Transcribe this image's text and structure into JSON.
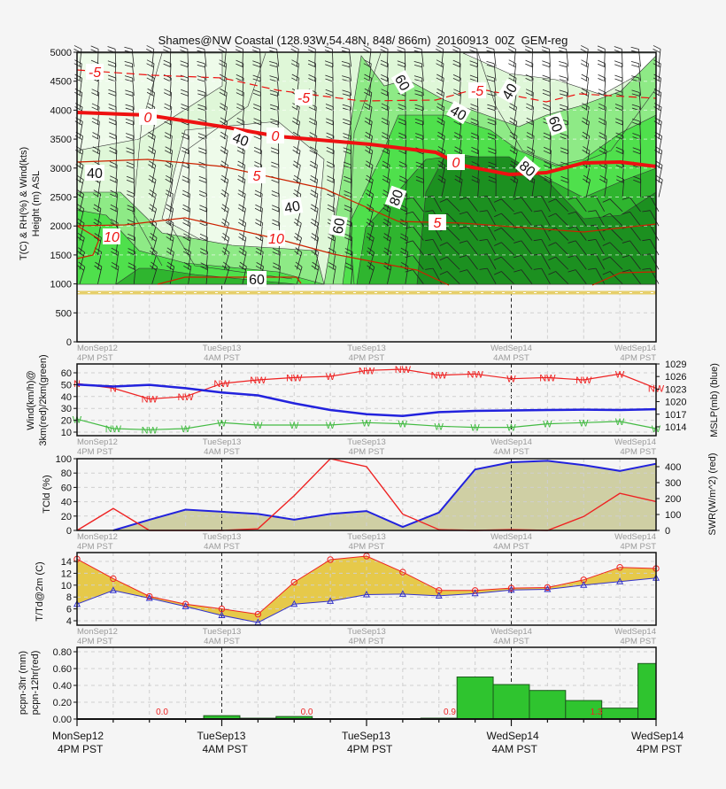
{
  "title": "Shames@NW Coastal (128.93W,54.48N, 848/ 866m)  20160913  00Z  GEM-reg",
  "time_axis": {
    "major_labels": [
      {
        "day": "MonSep12",
        "time": "4PM PST"
      },
      {
        "day": "TueSep13",
        "time": "4AM PST"
      },
      {
        "day": "TueSep13",
        "time": "4PM PST"
      },
      {
        "day": "WedSep14",
        "time": "4AM PST"
      },
      {
        "day": "WedSep14",
        "time": "4PM PST"
      }
    ],
    "step_hours": 3,
    "points": 17
  },
  "chart_data": [
    {
      "type": "heatmap",
      "panel": "cross-section",
      "ylabel": "T(C) & RH(%) & Wind(kts)",
      "ylabel2": "Height (m) ASL",
      "ylim": [
        0,
        5000
      ],
      "yticks": [
        "0",
        "500",
        "1000",
        "1500",
        "2000",
        "2500",
        "3000",
        "3500",
        "4000",
        "4500",
        "5000"
      ],
      "station_elevation_m": 848,
      "colors": {
        "rh_shading": [
          "#ffffff",
          "#eefbea",
          "#c8f3c0",
          "#8eea86",
          "#4fe04c",
          "#2fb52f",
          "#1c9020"
        ],
        "temperature": "#ee1111",
        "ground": "#e6cf6a"
      },
      "rh_labels": [
        "40",
        "40",
        "40",
        "60",
        "60",
        "80",
        "60",
        "40",
        "80",
        "60",
        "40"
      ],
      "temp_labels": [
        "-5",
        "-5",
        "-5",
        "0",
        "0",
        "0",
        "5",
        "5",
        "10",
        "10"
      ],
      "grid": true
    },
    {
      "type": "line",
      "panel": "wind",
      "ylabel": "Wind(km/h)@",
      "ylabel2": "3km(red)/2km(green)",
      "y2label": "MSLP(mb) (blue)",
      "yticks": [
        "10",
        "20",
        "30",
        "40",
        "50",
        "60"
      ],
      "y2ticks": [
        "1014",
        "1017",
        "1020",
        "1023",
        "1026",
        "1029"
      ],
      "series": [
        {
          "color": "#ee2222",
          "values": [
            51,
            47,
            38,
            40,
            51,
            54,
            56,
            57,
            62,
            63,
            58,
            59,
            55,
            56,
            54,
            59,
            47
          ],
          "labels": [
            "N",
            "N",
            "NW",
            "NW",
            "NW",
            "NW",
            "NW",
            "W",
            "NW",
            "NW",
            "NW",
            "NW",
            "W",
            "NW",
            "NW",
            "W",
            "NW"
          ]
        },
        {
          "color": "#44bb44",
          "values": [
            21,
            13,
            12,
            13,
            18,
            16,
            16,
            16,
            18,
            17,
            15,
            14,
            14,
            17,
            18,
            19,
            13
          ],
          "labels": [
            "W",
            "NW",
            "NW",
            "W",
            "W",
            "W",
            "W",
            "W",
            "W",
            "W",
            "W",
            "W",
            "W",
            "W",
            "W",
            "W",
            "W"
          ]
        },
        {
          "color": "#2222dd",
          "axis": "right",
          "values": [
            1024.1,
            1023.6,
            1024.0,
            1023.2,
            1022.2,
            1021.5,
            1019.6,
            1018.0,
            1017.0,
            1016.6,
            1017.5,
            1017.8,
            1017.9,
            1018.0,
            1018.1,
            1018.0,
            1018.2
          ]
        }
      ],
      "grid": true
    },
    {
      "type": "area",
      "panel": "cloud-radiation",
      "ylabel": "TCld (%)",
      "y2label": "SWR(W/m^2) (red)",
      "ylim": [
        0,
        100
      ],
      "yticks": [
        "0",
        "20",
        "40",
        "60",
        "80",
        "100"
      ],
      "y2ticks": [
        "0",
        "100",
        "200",
        "300",
        "400"
      ],
      "series": [
        {
          "color": "#2222dd",
          "fill": "#cfcfa4",
          "values": [
            0,
            0,
            15,
            29,
            26,
            23,
            15,
            23,
            27,
            5,
            25,
            85,
            95,
            97,
            91,
            83,
            93
          ]
        },
        {
          "color": "#ee2222",
          "axis": "right",
          "values": [
            0,
            138,
            0,
            0,
            0,
            10,
            218,
            450,
            400,
            102,
            5,
            0,
            5,
            0,
            87,
            233,
            181
          ]
        }
      ],
      "grid": true
    },
    {
      "type": "line",
      "panel": "temperature",
      "ylabel": "T/Td@2m (C)",
      "yticks": [
        "4",
        "6",
        "8",
        "10",
        "12",
        "14"
      ],
      "fill": "#e6c94a",
      "series": [
        {
          "color": "#ee2222",
          "marker": "circle",
          "values": [
            14.4,
            11.1,
            8.1,
            6.8,
            6.0,
            5.1,
            10.5,
            14.3,
            14.9,
            12.2,
            9.1,
            9.1,
            9.5,
            9.6,
            10.9,
            13.0,
            12.8
          ]
        },
        {
          "color": "#3333cc",
          "marker": "triangle",
          "values": [
            6.8,
            9.1,
            7.8,
            6.4,
            4.9,
            3.7,
            6.8,
            7.3,
            8.4,
            8.5,
            8.2,
            8.6,
            9.2,
            9.3,
            10.0,
            10.6,
            11.2
          ]
        }
      ],
      "grid": true
    },
    {
      "type": "bar",
      "panel": "precipitation",
      "ylabel": "pcpn-3hr (mm)",
      "ylabel2": "pcpn-12hr(red)",
      "ylim": [
        0,
        0.85
      ],
      "yticks": [
        "0.00",
        "0.20",
        "0.40",
        "0.60",
        "0.80"
      ],
      "bar_color": "#2fc42f",
      "values": [
        0,
        0,
        0,
        0,
        0.04,
        0.01,
        0.03,
        0,
        0,
        0,
        0.01,
        0.5,
        0.41,
        0.34,
        0.22,
        0.13,
        0.66
      ],
      "totals_12hr": [
        "0.0",
        "0.0",
        "0.9",
        "1.3"
      ],
      "grid": true
    }
  ]
}
